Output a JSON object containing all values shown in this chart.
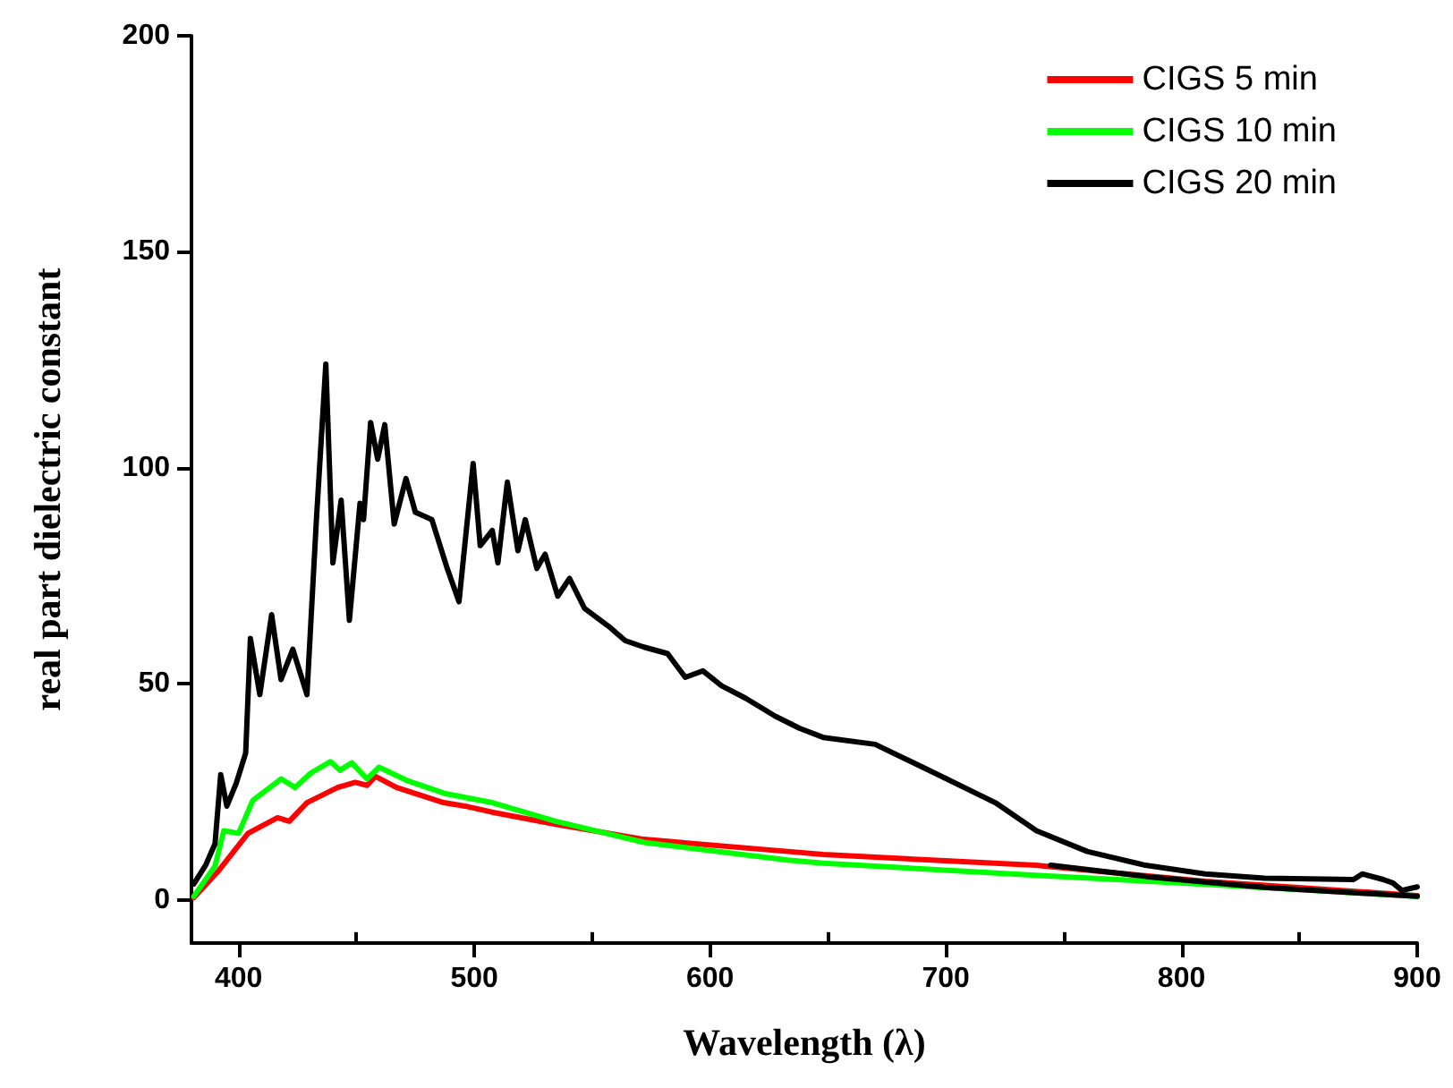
{
  "chart_data": {
    "type": "line",
    "xlabel": "Wavelength (λ)",
    "ylabel": "real part dielectric constant",
    "xlim": [
      380,
      900
    ],
    "ylim": [
      -10,
      200
    ],
    "xticks": [
      400,
      500,
      600,
      700,
      800,
      900
    ],
    "yticks": [
      0,
      50,
      100,
      150,
      200
    ],
    "grid": false,
    "legend": "top right",
    "marker": "none",
    "line_style": "solid",
    "series": [
      {
        "name": "CIGS 5 min",
        "color": "#ff0000",
        "x": [
          381,
          391,
          404,
          416.5,
          421.5,
          429,
          442,
          449.5,
          454.5,
          458,
          467,
          487,
          496,
          507.5,
          534.5,
          572,
          633,
          648,
          738,
          810,
          900
        ],
        "values": [
          0.5,
          6.4,
          15.4,
          19,
          18.2,
          22.5,
          26,
          27.2,
          26.5,
          28.6,
          26,
          22.5,
          21.7,
          20.3,
          17.5,
          14,
          11.2,
          10.5,
          8,
          4.3,
          1
        ]
      },
      {
        "name": "CIGS 10 min",
        "color": "#00ff00",
        "x": [
          381,
          390,
          393.7,
          400,
          406,
          418,
          424,
          430.5,
          439,
          443,
          448,
          454.5,
          459.6,
          472,
          487,
          496,
          507.6,
          534.5,
          572,
          633,
          648,
          738,
          810,
          900
        ],
        "values": [
          0.8,
          7.8,
          16,
          15.4,
          23,
          28,
          26,
          29.3,
          32,
          30,
          31.7,
          28,
          30.7,
          27.5,
          24.7,
          23.7,
          22.5,
          18.2,
          13.3,
          9.2,
          8.5,
          5.7,
          3.6,
          0.8
        ]
      },
      {
        "name": "CIGS 20 min",
        "color": "#000000",
        "x": [
          381,
          386,
          390,
          392.4,
          395,
          399,
          403,
          405,
          409,
          414,
          418,
          423,
          429,
          433,
          437,
          440,
          443.5,
          447,
          451.5,
          453,
          456,
          459,
          462,
          466,
          471,
          475,
          482,
          488.5,
          493.5,
          499.5,
          502.5,
          507.6,
          510,
          514,
          518.5,
          521.6,
          526.5,
          530,
          535.4,
          540.4,
          546.7,
          557,
          564,
          572,
          582,
          589.5,
          597,
          605,
          615,
          627.7,
          638,
          648,
          670,
          695.5,
          721,
          738.5,
          760,
          784.7,
          810,
          835.3,
          873,
          876.7,
          885.6,
          889.7,
          893.5,
          900
        ],
        "values": [
          3.7,
          8,
          13,
          29,
          21.7,
          27,
          34,
          60.5,
          47.5,
          66,
          51,
          58,
          47.5,
          88,
          124,
          78,
          92.5,
          64.7,
          91.8,
          88,
          110.5,
          102,
          110,
          87,
          97.5,
          89.7,
          88,
          76.7,
          69,
          101,
          82,
          85.5,
          78,
          96.7,
          80.8,
          88,
          76.7,
          80,
          70.3,
          74.4,
          67.5,
          63.3,
          60,
          58.5,
          57,
          51.5,
          53,
          49.5,
          46.7,
          42.5,
          39.7,
          37.6,
          36,
          29.3,
          22.5,
          16,
          11.2,
          8,
          6,
          5,
          4.7,
          6,
          4.7,
          3.9,
          2.2,
          3
        ]
      },
      {
        "color": "#000000",
        "x": [
          744.5,
          785,
          835,
          900
        ],
        "values": [
          8,
          5.4,
          2.9,
          0.8
        ]
      }
    ]
  }
}
